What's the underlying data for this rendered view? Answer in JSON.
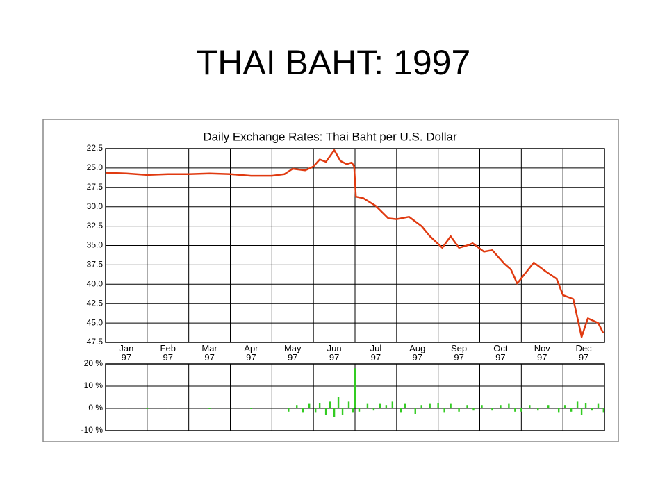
{
  "title": "THAI BAHT: 1997",
  "chart_data": [
    {
      "type": "line",
      "title": "Daily Exchange Rates: Thai Baht per U.S. Dollar",
      "categories": [
        "Jan 97",
        "Feb 97",
        "Mar 97",
        "Apr 97",
        "May 97",
        "Jun 97",
        "Jul 97",
        "Aug 97",
        "Sep 97",
        "Oct 97",
        "Nov 97",
        "Dec 97"
      ],
      "x": [
        0,
        0.5,
        1,
        1.5,
        2,
        2.5,
        3,
        3.5,
        4,
        4.3,
        4.5,
        4.8,
        5.0,
        5.15,
        5.3,
        5.5,
        5.65,
        5.8,
        5.92,
        5.98,
        6.02,
        6.2,
        6.5,
        6.8,
        7.0,
        7.3,
        7.6,
        7.8,
        8.1,
        8.3,
        8.5,
        8.75,
        8.83,
        9.1,
        9.3,
        9.6,
        9.75,
        9.9,
        10.3,
        10.6,
        10.85,
        11.0,
        11.25,
        11.45,
        11.6,
        11.85,
        11.97
      ],
      "values": [
        25.6,
        25.7,
        25.9,
        25.8,
        25.8,
        25.7,
        25.8,
        26.0,
        26.0,
        25.8,
        25.1,
        25.3,
        24.8,
        23.9,
        24.2,
        22.7,
        24.1,
        24.5,
        24.3,
        24.8,
        28.7,
        28.9,
        29.9,
        31.5,
        31.6,
        31.3,
        32.5,
        33.8,
        35.3,
        33.8,
        35.3,
        34.9,
        34.7,
        35.8,
        35.6,
        37.4,
        38.1,
        39.9,
        37.2,
        38.4,
        39.3,
        41.4,
        41.9,
        46.8,
        44.4,
        45.0,
        46.3
      ],
      "color": "#e03a10",
      "xlim": [
        0,
        12
      ],
      "ylim": [
        22.5,
        47.5
      ],
      "y_inverted": true,
      "yticks": [
        22.5,
        {
          "value": 25,
          "label": "25.0"
        },
        27.5,
        {
          "value": 30,
          "label": "30.0"
        },
        32.5,
        {
          "value": 35,
          "label": "35.0"
        },
        37.5,
        {
          "value": 40,
          "label": "40.0"
        },
        42.5,
        {
          "value": 45,
          "label": "45.0"
        },
        47.5
      ],
      "grid": true
    },
    {
      "type": "bar",
      "x": [
        0.5,
        1,
        1.5,
        2,
        2.5,
        3,
        3.5,
        4,
        4.4,
        4.6,
        4.75,
        4.9,
        5.05,
        5.15,
        5.3,
        5.4,
        5.5,
        5.6,
        5.7,
        5.85,
        5.95,
        6.0,
        6.1,
        6.3,
        6.45,
        6.6,
        6.75,
        6.9,
        7.1,
        7.2,
        7.45,
        7.6,
        7.8,
        8.0,
        8.15,
        8.3,
        8.5,
        8.7,
        8.85,
        9.05,
        9.3,
        9.5,
        9.7,
        9.85,
        10.0,
        10.2,
        10.4,
        10.65,
        10.9,
        11.05,
        11.2,
        11.35,
        11.45,
        11.55,
        11.7,
        11.85,
        11.98
      ],
      "values": [
        0.3,
        -0.3,
        0.3,
        0.3,
        -0.3,
        0.3,
        -0.3,
        0.3,
        -1.5,
        1.5,
        -2,
        2,
        -2,
        2.5,
        -3,
        3,
        -4,
        5,
        -3,
        3,
        -2,
        18,
        -1.5,
        2,
        -1,
        2,
        1.5,
        3,
        -2,
        2,
        -2.5,
        1.5,
        2,
        2.5,
        -2,
        2,
        -1.5,
        1.5,
        -1,
        1.5,
        -1,
        1.5,
        2,
        -1.5,
        -1.5,
        1.5,
        -1,
        1.5,
        -2,
        1.5,
        -1.5,
        3,
        -3,
        2.5,
        -1,
        2,
        -2
      ],
      "color": "#33cc22",
      "xlim": [
        0,
        12
      ],
      "ylim": [
        -10,
        20
      ],
      "yticks": [
        {
          "value": 20,
          "label": "20 %"
        },
        {
          "value": 10,
          "label": "10 %"
        },
        {
          "value": 0,
          "label": "0 %"
        },
        {
          "value": -10,
          "label": "-10 %"
        }
      ],
      "grid": true
    }
  ]
}
